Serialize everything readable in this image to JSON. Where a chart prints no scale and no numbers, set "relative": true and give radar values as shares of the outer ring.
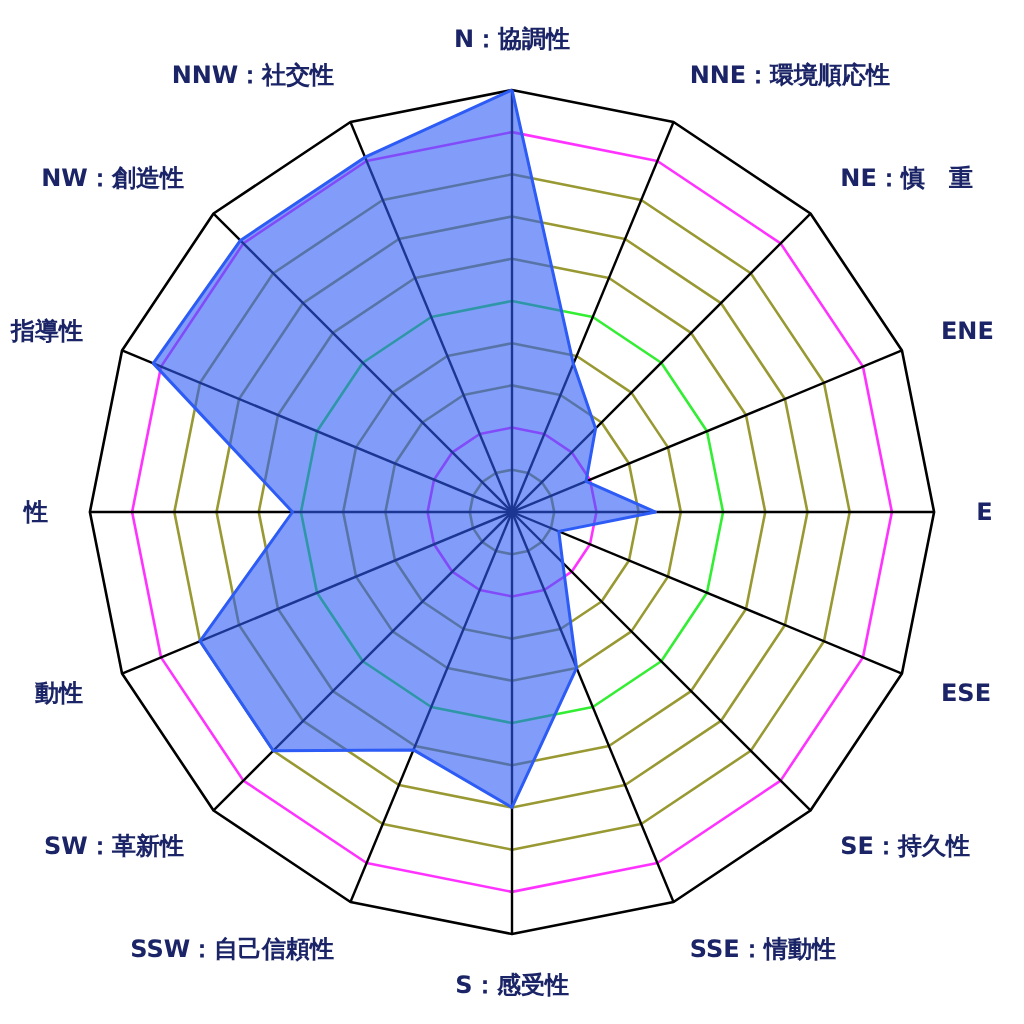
{
  "chart_data": {
    "type": "radar",
    "relative": true,
    "categories": [
      "N：協調性",
      "NNE：環境順応性",
      "NE：慎　重",
      "ENE",
      "E",
      "ESE",
      "SE：持久性",
      "SSE：情動性",
      "S：感受性",
      "SSW：自己信頼性",
      "SW：革新性",
      "動性",
      "性",
      "指導性",
      "NW：創造性",
      "NNW：社交性"
    ],
    "series": [
      {
        "color": "#2d5bf5",
        "values": [
          1,
          0.38,
          0.28,
          0.19,
          0.34,
          0.12,
          0.17,
          0.4,
          0.7,
          0.61,
          0.8,
          0.8,
          0.52,
          0.92,
          0.91,
          0.91
        ]
      }
    ],
    "grid": true
  }
}
